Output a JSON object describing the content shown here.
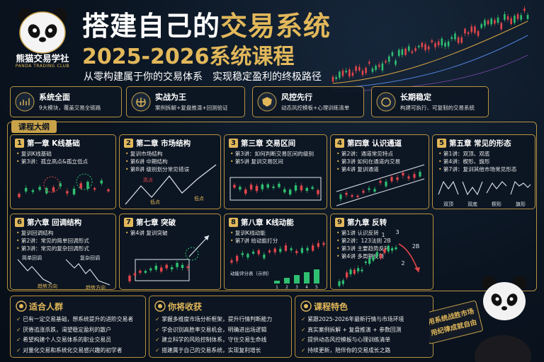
{
  "logo": {
    "name": "熊猫交易学社",
    "english": "PANDA TRADING CLUB"
  },
  "header": {
    "title_white": "搭建自己的",
    "title_gold": "交易系统",
    "course": "2025-2026系统课程",
    "subtitle": "从零构建属于你的交易体系　实现稳定盈利的终极路径"
  },
  "features": [
    {
      "title": "系统全面",
      "text": "9大模块，覆盖交易全链路"
    },
    {
      "title": "实战为王",
      "text": "案例拆解+复盘推演+回测验证"
    },
    {
      "title": "风控先行",
      "text": "动态风控模板+心理训练清单"
    },
    {
      "title": "长期稳定",
      "text": "构建可执行、可复制的交易系统"
    }
  ],
  "syllabus": {
    "title": "课程大纲",
    "chapters": [
      {
        "number": 1,
        "title": "第一章 K线基础",
        "items": [
          "复训K线基础",
          "第3讲：孤立高点&孤立低点"
        ]
      },
      {
        "number": 2,
        "title": "第二章 市场结构",
        "items": [
          "复训市场结构",
          "第6讲 中期结构",
          "第8讲 级别划分常见错误"
        ],
        "labels": [
          "高点",
          "低点",
          "低点"
        ]
      },
      {
        "number": 3,
        "title": "第三章 交易区间",
        "items": [
          "第3讲：如何判断交易区间的级别",
          "第5讲 复训交易区间"
        ]
      },
      {
        "number": 4,
        "title": "第四章 认识通道",
        "items": [
          "第2讲：通道常见特点",
          "第3讲 如何在通道内交易",
          "第4讲 复训通道"
        ]
      },
      {
        "number": 5,
        "title": "第五章 常见的形态",
        "items": [
          "第1讲：双顶、双底",
          "第4讲：楔形、旗形",
          "第7讲：复训其他市场常见形态"
        ],
        "labels": [
          "双顶",
          "双底",
          "楔形",
          "旗形"
        ]
      },
      {
        "number": 6,
        "title": "第六章 回调结构",
        "items": [
          "复训回调结构",
          "第2讲：常见的简单回调形式",
          "第3讲：常见的复杂回调形式"
        ],
        "labels": [
          "简单回调",
          "复杂回调",
          "趋势方向",
          "趋势方向"
        ]
      },
      {
        "number": 7,
        "title": "第七章 突破",
        "items": [
          "第4讲 复训突破"
        ]
      },
      {
        "number": 8,
        "title": "第八章 K线动能",
        "items": [
          "复训K线动能",
          "第7讲 给动能打分"
        ],
        "caption": "动能评分表（示例）",
        "scale": [
          1,
          2,
          3,
          4,
          5
        ]
      },
      {
        "number": 9,
        "title": "第九章 反转",
        "items": [
          "第1讲 认识反转",
          "第2讲：123法则 2B",
          "第3讲 主要趋势反转",
          "第4讲 多周期反转"
        ],
        "labels": [
          "1",
          "3",
          "2B",
          "2"
        ]
      }
    ]
  },
  "sections": [
    {
      "title": "适合人群",
      "items": [
        "已有一定交易基础，想系统提升的进阶交易者",
        "厌倦追涨杀跌，渴望稳定盈利的散户",
        "希望构建个人交易体系的职业交易员",
        "对量化交易和系统化交易感兴趣的初学者"
      ]
    },
    {
      "title": "你将收获",
      "items": [
        "掌握多维度市场分析框架，提升行情判断能力",
        "学会识别高胜率交易机会，明确进出场逻辑",
        "建立科学的风险控制体系，守住交易生命线",
        "搭建属于自己的交易系统，实现复利增长"
      ]
    },
    {
      "title": "课程特色",
      "items": [
        "紧跟2025-2026年最新行情与市场环境",
        "真实案例拆解 + 复盘推演 + 参数回测",
        "提供动态风控模板与心理训练清单",
        "持续更新，陪伴你的交易成长之路"
      ]
    }
  ],
  "panda_sign": [
    "用系统战胜市场",
    "用纪律成就自由"
  ]
}
